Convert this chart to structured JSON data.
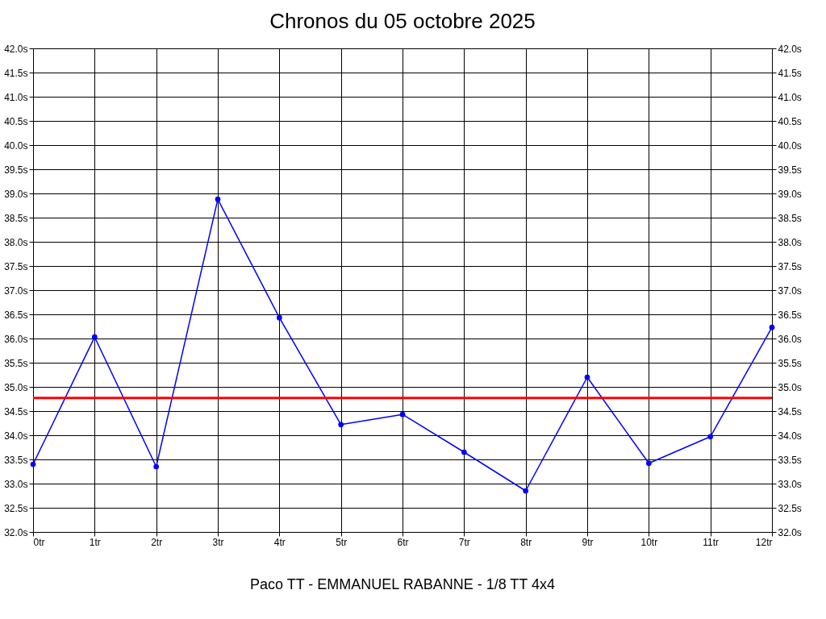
{
  "chart_data": {
    "type": "line",
    "title": "Chronos du 05 octobre 2025",
    "annotations": [
      "Paco TT - EMMANUEL RABANNE - 1/8 TT 4x4"
    ],
    "x": [
      0,
      1,
      2,
      3,
      4,
      5,
      6,
      7,
      8,
      9,
      10,
      11,
      12
    ],
    "series": [
      {
        "color": "#0000ff",
        "values": [
          33.4,
          36.03,
          33.35,
          38.88,
          36.43,
          34.22,
          34.43,
          33.65,
          32.85,
          35.2,
          33.42,
          33.97,
          36.23
        ]
      }
    ],
    "xlim": [
      0,
      12
    ],
    "xticks": [
      {
        "value": 0,
        "label": "0tr"
      },
      {
        "value": 1,
        "label": "1tr"
      },
      {
        "value": 2,
        "label": "2tr"
      },
      {
        "value": 3,
        "label": "3tr"
      },
      {
        "value": 4,
        "label": "4tr"
      },
      {
        "value": 5,
        "label": "5tr"
      },
      {
        "value": 6,
        "label": "6tr"
      },
      {
        "value": 7,
        "label": "7tr"
      },
      {
        "value": 8,
        "label": "8tr"
      },
      {
        "value": 9,
        "label": "9tr"
      },
      {
        "value": 10,
        "label": "10tr"
      },
      {
        "value": 11,
        "label": "11tr"
      },
      {
        "value": 12,
        "label": "12tr"
      }
    ],
    "ylim": [
      32,
      42
    ],
    "yticks": [
      {
        "value": 32,
        "label": "32.0s"
      },
      {
        "value": 32.5,
        "label": "32.5s"
      },
      {
        "value": 33,
        "label": "33.0s"
      },
      {
        "value": 33.5,
        "label": "33.5s"
      },
      {
        "value": 34,
        "label": "34.0s"
      },
      {
        "value": 34.5,
        "label": "34.5s"
      },
      {
        "value": 35,
        "label": "35.0s"
      },
      {
        "value": 35.5,
        "label": "35.5s"
      },
      {
        "value": 36,
        "label": "36.0s"
      },
      {
        "value": 36.5,
        "label": "36.5s"
      },
      {
        "value": 37,
        "label": "37.0s"
      },
      {
        "value": 37.5,
        "label": "37.5s"
      },
      {
        "value": 38,
        "label": "38.0s"
      },
      {
        "value": 38.5,
        "label": "38.5s"
      },
      {
        "value": 39,
        "label": "39.0s"
      },
      {
        "value": 39.5,
        "label": "39.5s"
      },
      {
        "value": 40,
        "label": "40.0s"
      },
      {
        "value": 40.5,
        "label": "40.5s"
      },
      {
        "value": 41,
        "label": "41.0s"
      },
      {
        "value": 41.5,
        "label": "41.5s"
      },
      {
        "value": 42,
        "label": "42.0s"
      }
    ],
    "y2lim": [
      32,
      42
    ],
    "y2ticks": [
      {
        "value": 32,
        "label": "32.0s"
      },
      {
        "value": 32.5,
        "label": "32.5s"
      },
      {
        "value": 33,
        "label": "33.0s"
      },
      {
        "value": 33.5,
        "label": "33.5s"
      },
      {
        "value": 34,
        "label": "34.0s"
      },
      {
        "value": 34.5,
        "label": "34.5s"
      },
      {
        "value": 35,
        "label": "35.0s"
      },
      {
        "value": 35.5,
        "label": "35.5s"
      },
      {
        "value": 36,
        "label": "36.0s"
      },
      {
        "value": 36.5,
        "label": "36.5s"
      },
      {
        "value": 37,
        "label": "37.0s"
      },
      {
        "value": 37.5,
        "label": "37.5s"
      },
      {
        "value": 38,
        "label": "38.0s"
      },
      {
        "value": 38.5,
        "label": "38.5s"
      },
      {
        "value": 39,
        "label": "39.0s"
      },
      {
        "value": 39.5,
        "label": "39.5s"
      },
      {
        "value": 40,
        "label": "40.0s"
      },
      {
        "value": 40.5,
        "label": "40.5s"
      },
      {
        "value": 41,
        "label": "41.0s"
      },
      {
        "value": 41.5,
        "label": "41.5s"
      },
      {
        "value": 42,
        "label": "42.0s"
      }
    ],
    "ref_lines": [
      {
        "axis": "y",
        "value": 34.77,
        "color": "#ff0000"
      }
    ],
    "grid": true,
    "marker": "circle",
    "line_style": "solid"
  }
}
